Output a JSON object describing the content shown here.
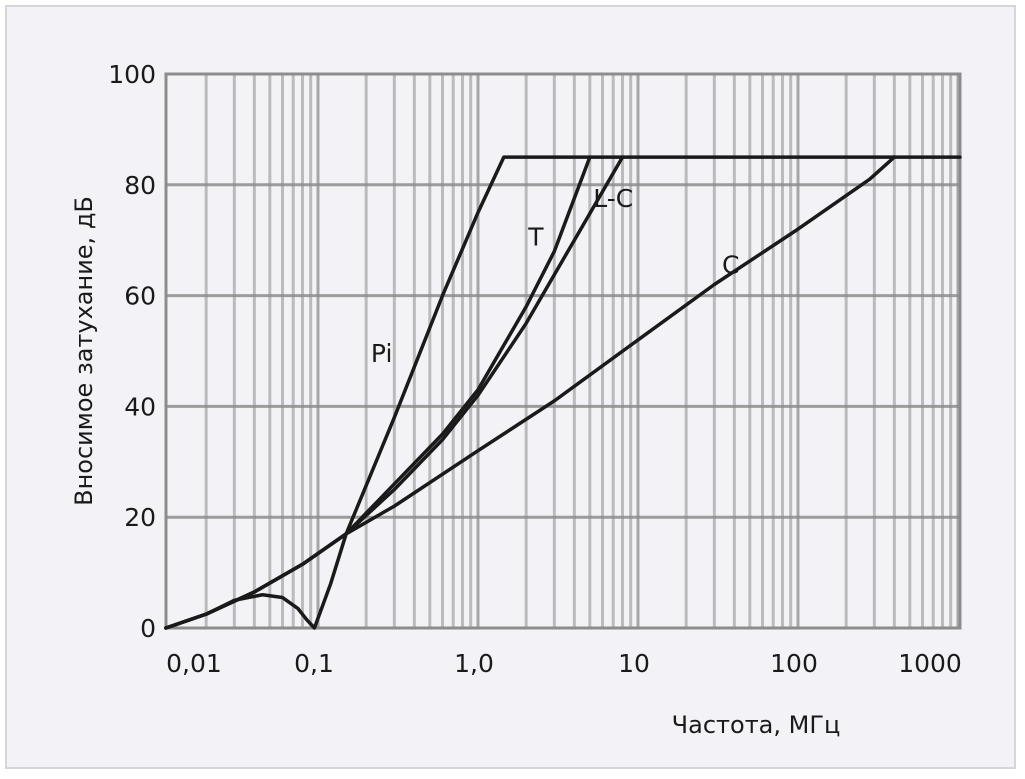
{
  "chart_data": {
    "type": "line",
    "title": "",
    "xlabel": "Частота, МГц",
    "ylabel": "Вносимое затухание, дБ",
    "xscale": "log",
    "xlim": [
      0.0112,
      1300
    ],
    "ylim": [
      0,
      100
    ],
    "grid": true,
    "legend_position": "inline labels",
    "x_ticks": [
      {
        "value": 0.01,
        "label": "0,01"
      },
      {
        "value": 0.1,
        "label": "0,1"
      },
      {
        "value": 1,
        "label": "1,0"
      },
      {
        "value": 10,
        "label": "10"
      },
      {
        "value": 100,
        "label": "100"
      },
      {
        "value": 1000,
        "label": "1000"
      }
    ],
    "y_ticks": [
      {
        "value": 0,
        "label": "0"
      },
      {
        "value": 20,
        "label": "20"
      },
      {
        "value": 40,
        "label": "40"
      },
      {
        "value": 60,
        "label": "60"
      },
      {
        "value": 80,
        "label": "80"
      },
      {
        "value": 100,
        "label": "100"
      }
    ],
    "series": [
      {
        "name": "Pi",
        "x": [
          0.0112,
          0.02,
          0.03,
          0.045,
          0.06,
          0.075,
          0.085,
          0.095,
          0.12,
          0.15,
          0.3,
          0.6,
          1.0,
          1.45,
          1300
        ],
        "y": [
          0,
          2.5,
          5.0,
          6.0,
          5.5,
          3.5,
          1.5,
          0,
          8,
          17,
          38,
          60,
          75,
          85,
          85
        ]
      },
      {
        "name": "T",
        "x": [
          0.0112,
          0.02,
          0.04,
          0.08,
          0.15,
          0.3,
          0.6,
          1.0,
          2.0,
          3.0,
          5.0
        ],
        "y": [
          0,
          2.5,
          6.5,
          11.5,
          17,
          26,
          35,
          43,
          58,
          68,
          85
        ]
      },
      {
        "name": "L-C",
        "x": [
          0.0112,
          0.02,
          0.04,
          0.08,
          0.15,
          0.3,
          0.6,
          1.0,
          2.0,
          4.0,
          8.0
        ],
        "y": [
          0,
          2.5,
          6.5,
          11.5,
          17,
          25,
          34,
          42,
          55,
          70,
          85
        ]
      },
      {
        "name": "C",
        "x": [
          0.0112,
          0.02,
          0.04,
          0.08,
          0.15,
          0.3,
          1.0,
          3.0,
          10.0,
          30.0,
          100.0,
          280.0,
          400.0
        ],
        "y": [
          0,
          2.5,
          6.5,
          11.5,
          17,
          22,
          32,
          41,
          52,
          62,
          72,
          81,
          85
        ]
      }
    ],
    "annotations": [
      {
        "text": "Pi",
        "x": 0.25,
        "y": 48
      },
      {
        "text": "T",
        "x": 2.3,
        "y": 69
      },
      {
        "text": "L-C",
        "x": 7.0,
        "y": 76
      },
      {
        "text": "C",
        "x": 38,
        "y": 64
      }
    ]
  },
  "colors": {
    "background": "#f3f3f7",
    "grid": "#8c8c8c",
    "curve": "#1a1a1a"
  }
}
